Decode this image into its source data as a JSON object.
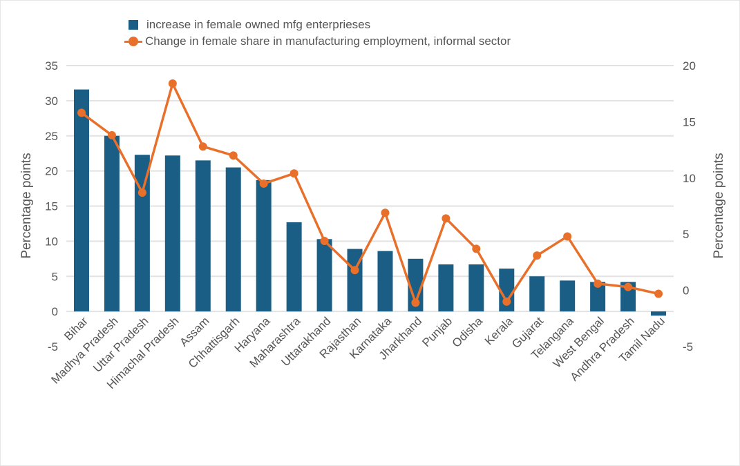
{
  "chart_data": {
    "type": "bar+line",
    "categories": [
      "Bihar",
      "Madhya Pradesh",
      "Uttar Pradesh",
      "Himachal Pradesh",
      "Assam",
      "Chhattisgarh",
      "Haryana",
      "Maharashtra",
      "Uttarakhand",
      "Rajasthan",
      "Karnataka",
      "Jharkhand",
      "Punjab",
      "Odisha",
      "Kerala",
      "Gujarat",
      "Telangana",
      "West Bengal",
      "Andhra Pradesh",
      "Tamil Nadu"
    ],
    "series": [
      {
        "name": "increase in female owned mfg enterprieses",
        "type": "bar",
        "axis": "left",
        "color": "#1a5d85",
        "values": [
          31.6,
          25.0,
          22.3,
          22.2,
          21.5,
          20.5,
          18.7,
          12.7,
          10.3,
          8.9,
          8.6,
          7.5,
          6.7,
          6.7,
          6.1,
          5.0,
          4.4,
          4.2,
          4.2,
          -0.6
        ]
      },
      {
        "name": "Change in female share in manufacturing employment, informal sector",
        "type": "line",
        "axis": "right",
        "color": "#e8702a",
        "values": [
          15.8,
          13.8,
          8.7,
          18.4,
          12.8,
          12.0,
          9.5,
          10.4,
          4.4,
          1.8,
          6.9,
          -1.1,
          6.4,
          3.7,
          -1.0,
          3.1,
          4.8,
          0.6,
          0.3,
          -0.3
        ]
      }
    ],
    "ylabel_left": "Percentage points",
    "ylabel_right": "Percentage points",
    "ylim_left": [
      -5,
      35
    ],
    "ylim_right": [
      -5,
      20
    ],
    "yticks_left": [
      "-5",
      "0",
      "5",
      "10",
      "15",
      "20",
      "25",
      "30",
      "35"
    ],
    "yticks_right": [
      "-5",
      "0",
      "5",
      "10",
      "15",
      "20"
    ],
    "grid": true,
    "legend_position": "top"
  }
}
